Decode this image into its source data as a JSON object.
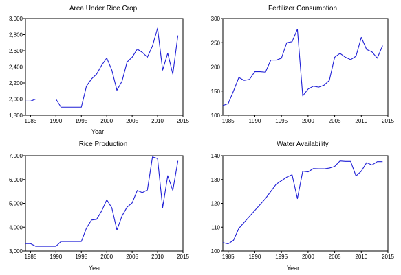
{
  "colors": {
    "series": "#1f1fd6",
    "axis": "#000000"
  },
  "chart_data": [
    {
      "type": "line",
      "title": "Area Under Rice Crop",
      "xlabel": "Year",
      "ylabel": "",
      "xlim": [
        1984,
        2015
      ],
      "ylim": [
        1800,
        3000
      ],
      "xticks": [
        1985,
        1990,
        1995,
        2000,
        2005,
        2010,
        2015
      ],
      "yticks": [
        1800,
        2000,
        2200,
        2400,
        2600,
        2800,
        3000
      ],
      "ytick_labels": [
        "1,800",
        "2,000",
        "2,200",
        "2,400",
        "2,600",
        "2,800",
        "3,000"
      ],
      "grid": false,
      "x": [
        1984,
        1985,
        1986,
        1987,
        1988,
        1989,
        1990,
        1991,
        1992,
        1993,
        1994,
        1995,
        1996,
        1997,
        1998,
        1999,
        2000,
        2001,
        2002,
        2003,
        2004,
        2005,
        2006,
        2007,
        2008,
        2009,
        2010,
        2011,
        2012,
        2013,
        2014
      ],
      "series": [
        {
          "values": [
            1975,
            1975,
            2000,
            2000,
            2000,
            2000,
            2000,
            1900,
            1900,
            1900,
            1900,
            1900,
            2160,
            2250,
            2310,
            2420,
            2510,
            2360,
            2110,
            2220,
            2460,
            2520,
            2620,
            2580,
            2520,
            2660,
            2880,
            2360,
            2570,
            2310,
            2790
          ]
        }
      ]
    },
    {
      "type": "line",
      "title": "Fertilizer Consumption",
      "xlabel": "",
      "ylabel": "",
      "xlim": [
        1984,
        2015
      ],
      "ylim": [
        100,
        300
      ],
      "xticks": [
        1985,
        1990,
        1995,
        2000,
        2005,
        2010,
        2015
      ],
      "yticks": [
        100,
        150,
        200,
        250,
        300
      ],
      "ytick_labels": [
        "100",
        "150",
        "200",
        "250",
        "300"
      ],
      "grid": false,
      "x": [
        1984,
        1985,
        1986,
        1987,
        1988,
        1989,
        1990,
        1991,
        1992,
        1993,
        1994,
        1995,
        1996,
        1997,
        1998,
        1999,
        2000,
        2001,
        2002,
        2003,
        2004,
        2005,
        2006,
        2007,
        2008,
        2009,
        2010,
        2011,
        2012,
        2013,
        2014
      ],
      "series": [
        {
          "values": [
            120,
            124,
            150,
            178,
            172,
            174,
            190,
            190,
            189,
            214,
            214,
            218,
            250,
            252,
            278,
            140,
            154,
            160,
            158,
            162,
            172,
            220,
            228,
            220,
            215,
            222,
            261,
            236,
            231,
            218,
            244
          ]
        }
      ]
    },
    {
      "type": "line",
      "title": "Rice Production",
      "xlabel": "Year",
      "ylabel": "",
      "xlim": [
        1984,
        2015
      ],
      "ylim": [
        3000,
        7000
      ],
      "xticks": [
        1985,
        1990,
        1995,
        2000,
        2005,
        2010,
        2015
      ],
      "yticks": [
        3000,
        4000,
        5000,
        6000,
        7000
      ],
      "ytick_labels": [
        "3,000",
        "4,000",
        "5,000",
        "6,000",
        "7,000"
      ],
      "grid": false,
      "x": [
        1984,
        1985,
        1986,
        1987,
        1988,
        1989,
        1990,
        1991,
        1992,
        1993,
        1994,
        1995,
        1996,
        1997,
        1998,
        1999,
        2000,
        2001,
        2002,
        2003,
        2004,
        2005,
        2006,
        2007,
        2008,
        2009,
        2010,
        2011,
        2012,
        2013,
        2014
      ],
      "series": [
        {
          "values": [
            3310,
            3310,
            3200,
            3200,
            3200,
            3200,
            3200,
            3400,
            3400,
            3400,
            3400,
            3400,
            3960,
            4300,
            4330,
            4680,
            5150,
            4810,
            3880,
            4470,
            4840,
            5020,
            5540,
            5450,
            5560,
            6950,
            6880,
            4820,
            6160,
            5540,
            6780
          ]
        }
      ]
    },
    {
      "type": "line",
      "title": "Water Availability",
      "xlabel": "Year",
      "ylabel": "",
      "xlim": [
        1984,
        2015
      ],
      "ylim": [
        100,
        140
      ],
      "xticks": [
        1985,
        1990,
        1995,
        2000,
        2005,
        2010,
        2015
      ],
      "yticks": [
        100,
        110,
        120,
        130,
        140
      ],
      "ytick_labels": [
        "100",
        "110",
        "120",
        "130",
        "140"
      ],
      "grid": false,
      "x": [
        1984,
        1985,
        1986,
        1987,
        1988,
        1989,
        1990,
        1991,
        1992,
        1993,
        1994,
        1995,
        1996,
        1997,
        1998,
        1999,
        2000,
        2001,
        2002,
        2003,
        2004,
        2005,
        2006,
        2007,
        2008,
        2009,
        2010,
        2011,
        2012,
        2013,
        2014
      ],
      "series": [
        {
          "values": [
            103.5,
            103,
            104.5,
            109.5,
            112,
            114.5,
            117,
            119.5,
            122,
            125,
            128,
            129.5,
            131,
            132,
            122,
            133.5,
            133.2,
            134.6,
            134.5,
            134.5,
            134.8,
            135.5,
            137.8,
            137.6,
            137.6,
            131.5,
            133.5,
            137.1,
            136.1,
            137.5,
            137.5
          ]
        }
      ]
    }
  ]
}
